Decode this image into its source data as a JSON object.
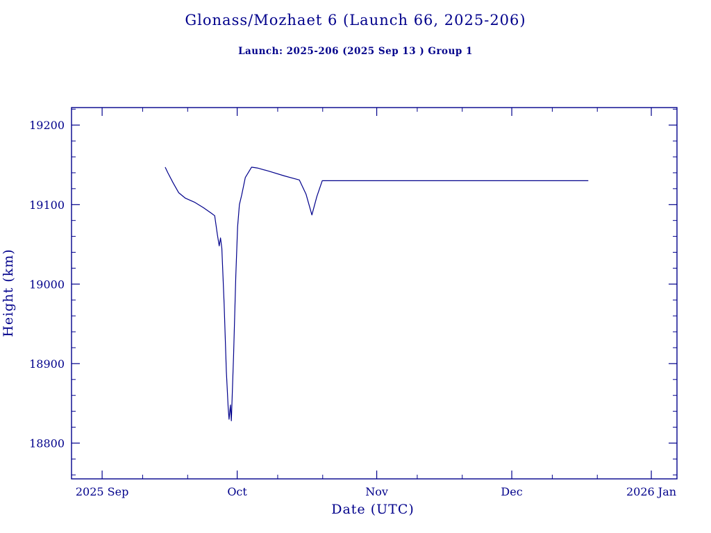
{
  "header": {
    "title": "Glonass/Mozhaet 6 (Launch 66, 2025-206)",
    "subtitle": "Launch: 2025-206  (2025 Sep 13 )  Group 1"
  },
  "colors": {
    "ink": "#00008b",
    "background": "#ffffff"
  },
  "chart_data": {
    "type": "line",
    "title": "Glonass/Mozhaet 6 (Launch 66, 2025-206)",
    "subtitle": "Launch: 2025-206  (2025 Sep 13 )  Group 1",
    "xlabel": "Date (UTC)",
    "ylabel": "Height (km)",
    "x_unit": "days since 2025 Sep 1",
    "xlim": [
      -6.8,
      127.7
    ],
    "ylim": [
      18755,
      19222
    ],
    "grid": false,
    "legend": null,
    "x_ticks": [
      {
        "day": 0,
        "label": "2025 Sep"
      },
      {
        "day": 30,
        "label": "Oct"
      },
      {
        "day": 61,
        "label": "Nov"
      },
      {
        "day": 91,
        "label": "Dec"
      },
      {
        "day": 122,
        "label": "2026 Jan"
      }
    ],
    "x_minor_days": [
      9,
      19,
      39,
      49,
      70,
      80,
      100,
      110
    ],
    "y_ticks": [
      18800,
      18900,
      19000,
      19100,
      19200
    ],
    "y_minor_step": 20,
    "series": [
      {
        "name": "height_km",
        "color": "#00008b",
        "points": [
          [
            14.0,
            19147
          ],
          [
            14.6,
            19140
          ],
          [
            15.8,
            19127
          ],
          [
            17.0,
            19115
          ],
          [
            18.5,
            19108
          ],
          [
            20.5,
            19103
          ],
          [
            22.5,
            19096
          ],
          [
            24.3,
            19089
          ],
          [
            25.0,
            19086
          ],
          [
            25.6,
            19062
          ],
          [
            26.0,
            19048
          ],
          [
            26.3,
            19058
          ],
          [
            26.6,
            19045
          ],
          [
            27.1,
            18975
          ],
          [
            27.6,
            18890
          ],
          [
            28.0,
            18845
          ],
          [
            28.2,
            18830
          ],
          [
            28.5,
            18848
          ],
          [
            28.7,
            18828
          ],
          [
            29.2,
            18910
          ],
          [
            29.7,
            19010
          ],
          [
            30.1,
            19072
          ],
          [
            30.5,
            19100
          ],
          [
            31.0,
            19112
          ],
          [
            31.8,
            19134
          ],
          [
            33.2,
            19147
          ],
          [
            34.5,
            19146
          ],
          [
            37.0,
            19142
          ],
          [
            40.5,
            19136
          ],
          [
            43.8,
            19131
          ],
          [
            45.3,
            19113
          ],
          [
            46.6,
            19087
          ],
          [
            47.7,
            19110
          ],
          [
            48.9,
            19130
          ],
          [
            108.0,
            19130
          ]
        ]
      }
    ]
  }
}
